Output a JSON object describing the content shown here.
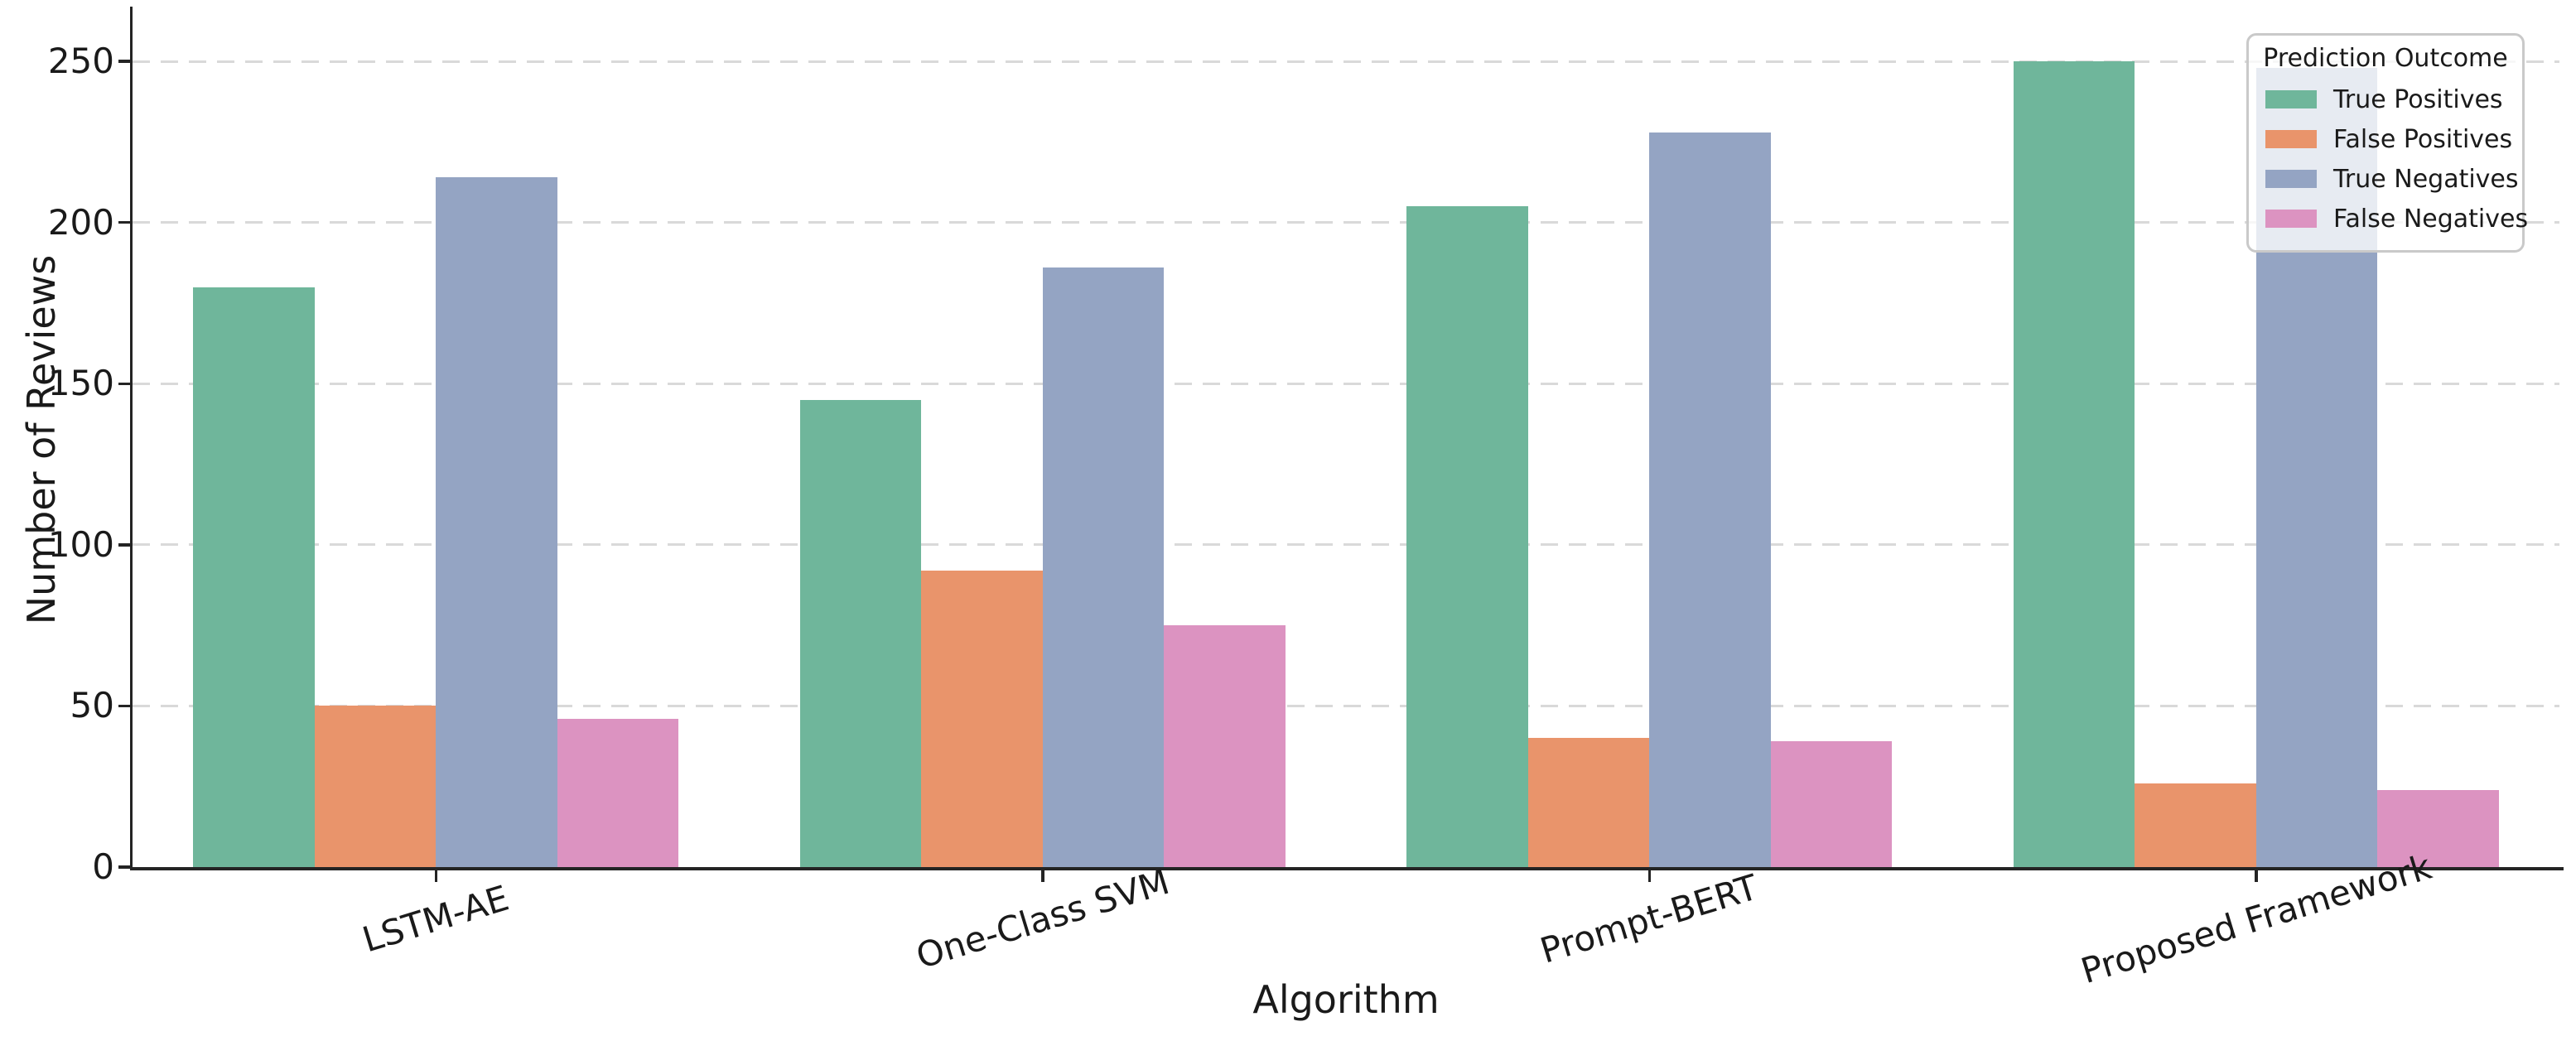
{
  "chart_data": {
    "type": "bar",
    "title": "",
    "xlabel": "Algorithm",
    "ylabel": "Number of Reviews",
    "categories": [
      "LSTM-AE",
      "One-Class SVM",
      "Prompt-BERT",
      "Proposed Framework"
    ],
    "series": [
      {
        "name": "True Positives",
        "color": "#6fb69b",
        "values": [
          180,
          145,
          205,
          250
        ]
      },
      {
        "name": "False Positives",
        "color": "#e9946b",
        "values": [
          50,
          92,
          40,
          26
        ]
      },
      {
        "name": "True Negatives",
        "color": "#94a4c3",
        "values": [
          214,
          186,
          228,
          248
        ]
      },
      {
        "name": "False Negatives",
        "color": "#dc93c1",
        "values": [
          46,
          75,
          39,
          24
        ]
      }
    ],
    "legend": {
      "title": "Prediction Outcome",
      "position": "upper right"
    },
    "ylim": [
      0,
      267
    ],
    "yticks": [
      0,
      50,
      100,
      150,
      200,
      250
    ],
    "grid": "horizontal-dashed",
    "xtick_rotation_deg": 17,
    "colors": {
      "grid": "#d9d9d9",
      "spine": "#242424",
      "text": "#1a1a1a",
      "background": "#ffffff"
    }
  }
}
